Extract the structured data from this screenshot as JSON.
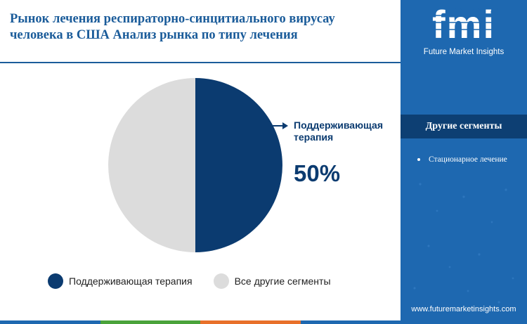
{
  "header": {
    "title_line1": "Рынок лечения респираторно‑синцитиального вирусау",
    "title_line2": "человека в США Анализ рынка по типу лечения"
  },
  "chart_data": {
    "type": "pie",
    "slices": [
      {
        "label": "Поддерживающая терапия",
        "value": 50,
        "color": "#0b3b70"
      },
      {
        "label": "Все другие сегменты",
        "value": 50,
        "color": "#dcdcdc"
      }
    ],
    "callout": {
      "label": "Поддерживающая терапия",
      "value_text": "50%"
    }
  },
  "legend": [
    {
      "label": "Поддерживающая терапия",
      "color": "#0b3b70"
    },
    {
      "label": "Все другие сегменты",
      "color": "#dcdcdc"
    }
  ],
  "sidebar": {
    "logo_text": "fmi",
    "logo_caption": "Future Market Insights",
    "segments_title": "Другие сегменты",
    "segments": [
      "Стационарное лечение"
    ],
    "website": "www.futuremarketinsights.com"
  },
  "colors": {
    "accent": "#1b5c9a",
    "sidebar": "#1e68b0",
    "sidebar_dark": "#0d3f73",
    "bottom_bar": [
      "#1e68b0",
      "#4aa33a",
      "#e8702a",
      "#1e68b0"
    ]
  }
}
